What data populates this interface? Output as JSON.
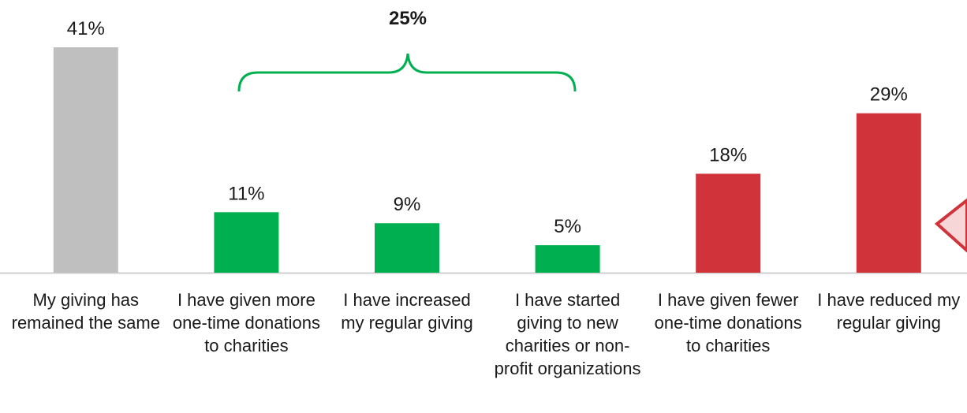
{
  "chart_data": {
    "type": "bar",
    "categories": [
      "My giving has remained the same",
      "I have given more one-time donations to charities",
      "I have increased my regular giving",
      "I have started giving to new charities or non-profit organizations",
      "I have given fewer one-time donations to charities",
      "I have reduced my regular giving"
    ],
    "values": [
      41,
      11,
      9,
      5,
      18,
      29
    ],
    "value_labels": [
      "41%",
      "11%",
      "9%",
      "5%",
      "18%",
      "29%"
    ],
    "colors": [
      "#bfbfbf",
      "#00b050",
      "#00b050",
      "#00b050",
      "#d0343a",
      "#d0343a"
    ],
    "annotation": {
      "text": "25%",
      "color": "#00b050"
    }
  }
}
